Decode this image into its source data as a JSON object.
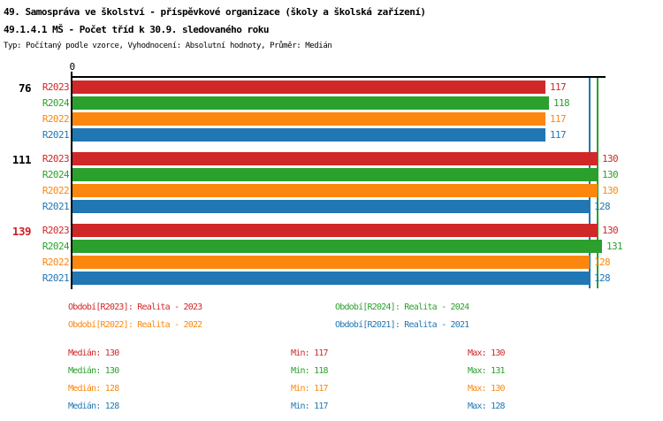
{
  "header": {
    "title": "49. Samospráva ve školství - příspěvkové organizace (školy a školská zařízení)",
    "subtitle": "49.1.4.1 MŠ - Počet tříd k 30.9. sledovaného roku",
    "meta": "Typ: Počítaný podle vzorce, Vyhodnocení: Absolutní hodnoty, Průměr: Medián"
  },
  "colors": {
    "R2023": "#d02828",
    "R2024": "#2ca02c",
    "R2022": "#fc870e",
    "R2021": "#2177b4",
    "axis": "#000000",
    "group_label_default": "#000000",
    "group_label_highlight": "#d02020"
  },
  "chart_data": {
    "type": "bar",
    "orientation": "horizontal",
    "axis_origin_label": "0",
    "xlim": [
      0,
      132
    ],
    "grid": false,
    "value_labels": "end-of-bar",
    "series_order": [
      "R2023",
      "R2024",
      "R2022",
      "R2021"
    ],
    "groups": [
      {
        "label": "76",
        "label_color": "#000000",
        "rows": [
          {
            "series": "R2023",
            "value": 117
          },
          {
            "series": "R2024",
            "value": 118
          },
          {
            "series": "R2022",
            "value": 117
          },
          {
            "series": "R2021",
            "value": 117
          }
        ]
      },
      {
        "label": "111",
        "label_color": "#000000",
        "rows": [
          {
            "series": "R2023",
            "value": 130
          },
          {
            "series": "R2024",
            "value": 130
          },
          {
            "series": "R2022",
            "value": 130
          },
          {
            "series": "R2021",
            "value": 128
          }
        ]
      },
      {
        "label": "139",
        "label_color": "#d02020",
        "rows": [
          {
            "series": "R2023",
            "value": 130
          },
          {
            "series": "R2024",
            "value": 131
          },
          {
            "series": "R2022",
            "value": 128
          },
          {
            "series": "R2021",
            "value": 128
          }
        ]
      }
    ],
    "median_lines": [
      {
        "series": "R2021",
        "value": 128
      },
      {
        "series": "R2024",
        "value": 130
      }
    ]
  },
  "legend": {
    "items": [
      {
        "label": "Období[R2023]: Realita - 2023",
        "series": "R2023",
        "col": 0,
        "row": 0
      },
      {
        "label": "Období[R2024]: Realita - 2024",
        "series": "R2024",
        "col": 1,
        "row": 0
      },
      {
        "label": "Období[R2022]: Realita - 2022",
        "series": "R2022",
        "col": 0,
        "row": 1
      },
      {
        "label": "Období[R2021]: Realita - 2021",
        "series": "R2021",
        "col": 1,
        "row": 1
      }
    ]
  },
  "stats": {
    "median_label": "Medián",
    "min_label": "Min",
    "max_label": "Max",
    "rows": [
      {
        "series": "R2023",
        "median": 130,
        "min": 117,
        "max": 130
      },
      {
        "series": "R2024",
        "median": 130,
        "min": 118,
        "max": 131
      },
      {
        "series": "R2022",
        "median": 128,
        "min": 117,
        "max": 130
      },
      {
        "series": "R2021",
        "median": 128,
        "min": 117,
        "max": 128
      }
    ]
  }
}
